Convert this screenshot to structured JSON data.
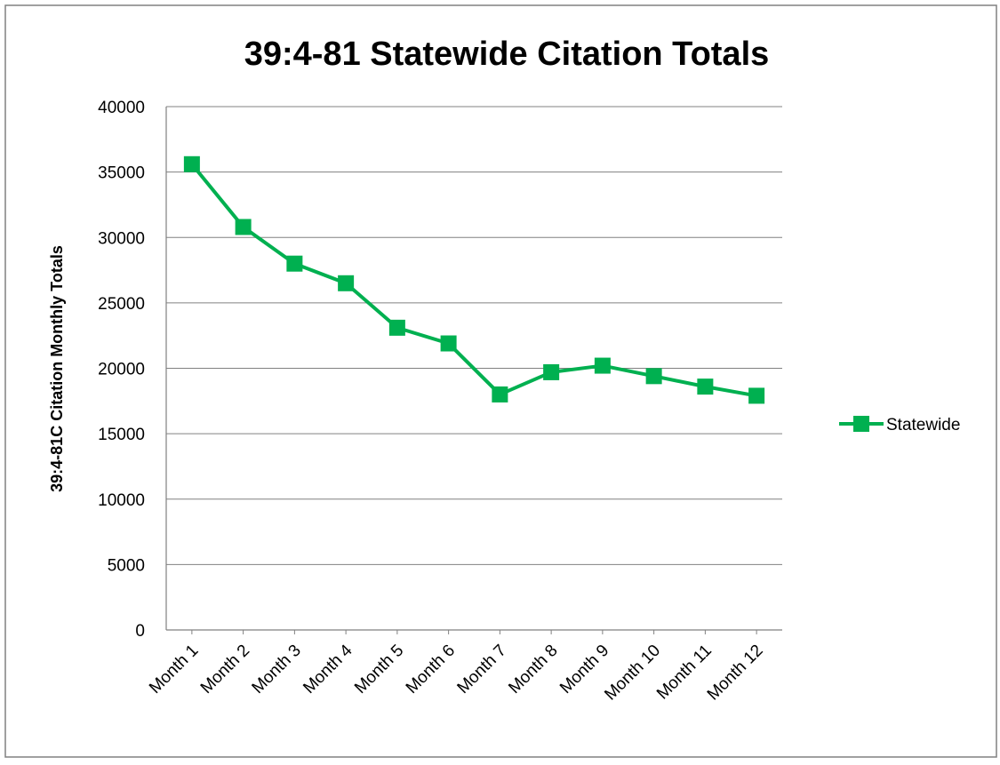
{
  "chart_data": {
    "type": "line",
    "title": "39:4-81 Statewide Citation Totals",
    "xlabel": "",
    "ylabel": "39:4-81C Citation Monthly Totals",
    "categories": [
      "Month 1",
      "Month 2",
      "Month 3",
      "Month 4",
      "Month 5",
      "Month 6",
      "Month 7",
      "Month 8",
      "Month 9",
      "Month 10",
      "Month 11",
      "Month 12"
    ],
    "series": [
      {
        "name": "Statewide",
        "color": "#00b050",
        "marker": "square",
        "values": [
          35600,
          30800,
          28000,
          26500,
          23100,
          21900,
          18000,
          19700,
          20200,
          19400,
          18600,
          17900
        ]
      }
    ],
    "ylim": [
      0,
      40000
    ],
    "yticks": [
      0,
      5000,
      10000,
      15000,
      20000,
      25000,
      30000,
      35000,
      40000
    ],
    "grid": true,
    "legend_position": "right",
    "colors": {
      "gridline": "#808080",
      "frame": "#808080",
      "text": "#000000"
    }
  }
}
